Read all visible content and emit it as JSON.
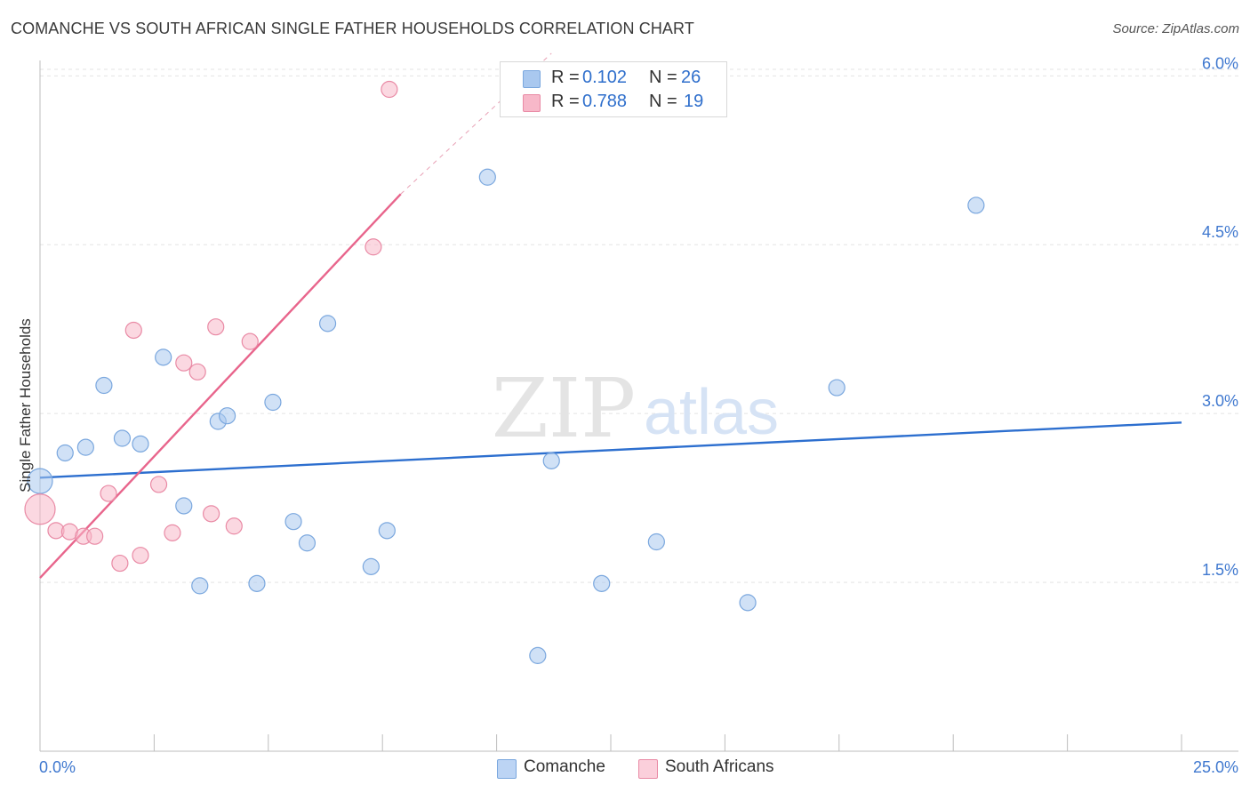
{
  "title": "COMANCHE VS SOUTH AFRICAN SINGLE FATHER HOUSEHOLDS CORRELATION CHART",
  "source": "Source: ZipAtlas.com",
  "watermark": {
    "zip": "ZIP",
    "atlas": "atlas"
  },
  "legend": {
    "rows": [
      {
        "r_label": "R =",
        "r_value": "0.102",
        "n_label": "N =",
        "n_value": "26",
        "color": "#a9c8ef",
        "border": "#7aa7de"
      },
      {
        "r_label": "R =",
        "r_value": "0.788",
        "n_label": "N =",
        "n_value": "19",
        "color": "#f7b8c9",
        "border": "#e98aa5"
      }
    ],
    "bottom": [
      {
        "label": "Comanche",
        "color": "#bcd4f4",
        "border": "#7aa7de"
      },
      {
        "label": "South Africans",
        "color": "#fbcfdb",
        "border": "#e98aa5"
      }
    ]
  },
  "chart_data": {
    "type": "scatter",
    "title": "COMANCHE VS SOUTH AFRICAN SINGLE FATHER HOUSEHOLDS CORRELATION CHART",
    "xlabel": "",
    "ylabel": "Single Father Households",
    "xlim": [
      0,
      25
    ],
    "ylim": [
      0,
      6.2
    ],
    "x_tick_labels": [
      "0.0%",
      "25.0%"
    ],
    "y_tick_values": [
      1.5,
      3.0,
      4.5,
      6.0
    ],
    "y_tick_labels": [
      "1.5%",
      "3.0%",
      "4.5%",
      "6.0%"
    ],
    "series": [
      {
        "name": "Comanche",
        "color": "#a9c8ef",
        "stroke": "#7aa7de",
        "line_color": "#2d6fcf",
        "x": [
          0.0,
          0.55,
          1.0,
          1.4,
          1.8,
          2.2,
          2.7,
          3.15,
          3.5,
          3.9,
          4.1,
          4.75,
          5.1,
          5.55,
          5.85,
          6.3,
          7.25,
          7.6,
          9.8,
          10.9,
          11.2,
          12.3,
          13.5,
          15.5,
          17.45,
          20.5
        ],
        "y": [
          2.4,
          2.65,
          2.7,
          3.25,
          2.78,
          2.73,
          3.5,
          2.18,
          1.47,
          2.93,
          2.98,
          1.49,
          3.1,
          2.04,
          1.85,
          3.8,
          1.64,
          1.96,
          5.1,
          0.85,
          2.58,
          1.49,
          1.86,
          1.32,
          3.23,
          4.85
        ],
        "sizes": [
          14,
          9,
          9,
          9,
          9,
          9,
          9,
          9,
          9,
          9,
          9,
          9,
          9,
          9,
          9,
          9,
          9,
          9,
          9,
          9,
          9,
          9,
          9,
          9,
          9,
          9
        ],
        "trend": {
          "x0": 0.0,
          "y0": 2.43,
          "x1": 25.0,
          "y1": 2.92
        }
      },
      {
        "name": "South Africans",
        "color": "#f7b8c9",
        "stroke": "#e98aa5",
        "line_color": "#e8658c",
        "x": [
          0.0,
          0.35,
          0.65,
          0.95,
          1.2,
          1.5,
          1.75,
          2.05,
          2.2,
          2.6,
          2.9,
          3.15,
          3.45,
          3.75,
          3.85,
          4.25,
          4.6,
          7.3,
          7.65
        ],
        "y": [
          2.15,
          1.96,
          1.95,
          1.91,
          1.91,
          2.29,
          1.67,
          3.74,
          1.74,
          2.37,
          1.94,
          3.45,
          3.37,
          2.11,
          3.77,
          2.0,
          3.64,
          4.48,
          5.88
        ],
        "sizes": [
          17,
          9,
          9,
          9,
          9,
          9,
          9,
          9,
          9,
          9,
          9,
          9,
          9,
          9,
          9,
          9,
          9,
          9,
          9
        ],
        "trend": {
          "x0": 0.0,
          "y0": 1.54,
          "x1": 7.9,
          "y1": 4.95,
          "dash_x1": 11.2,
          "dash_y1": 6.2
        }
      }
    ]
  }
}
